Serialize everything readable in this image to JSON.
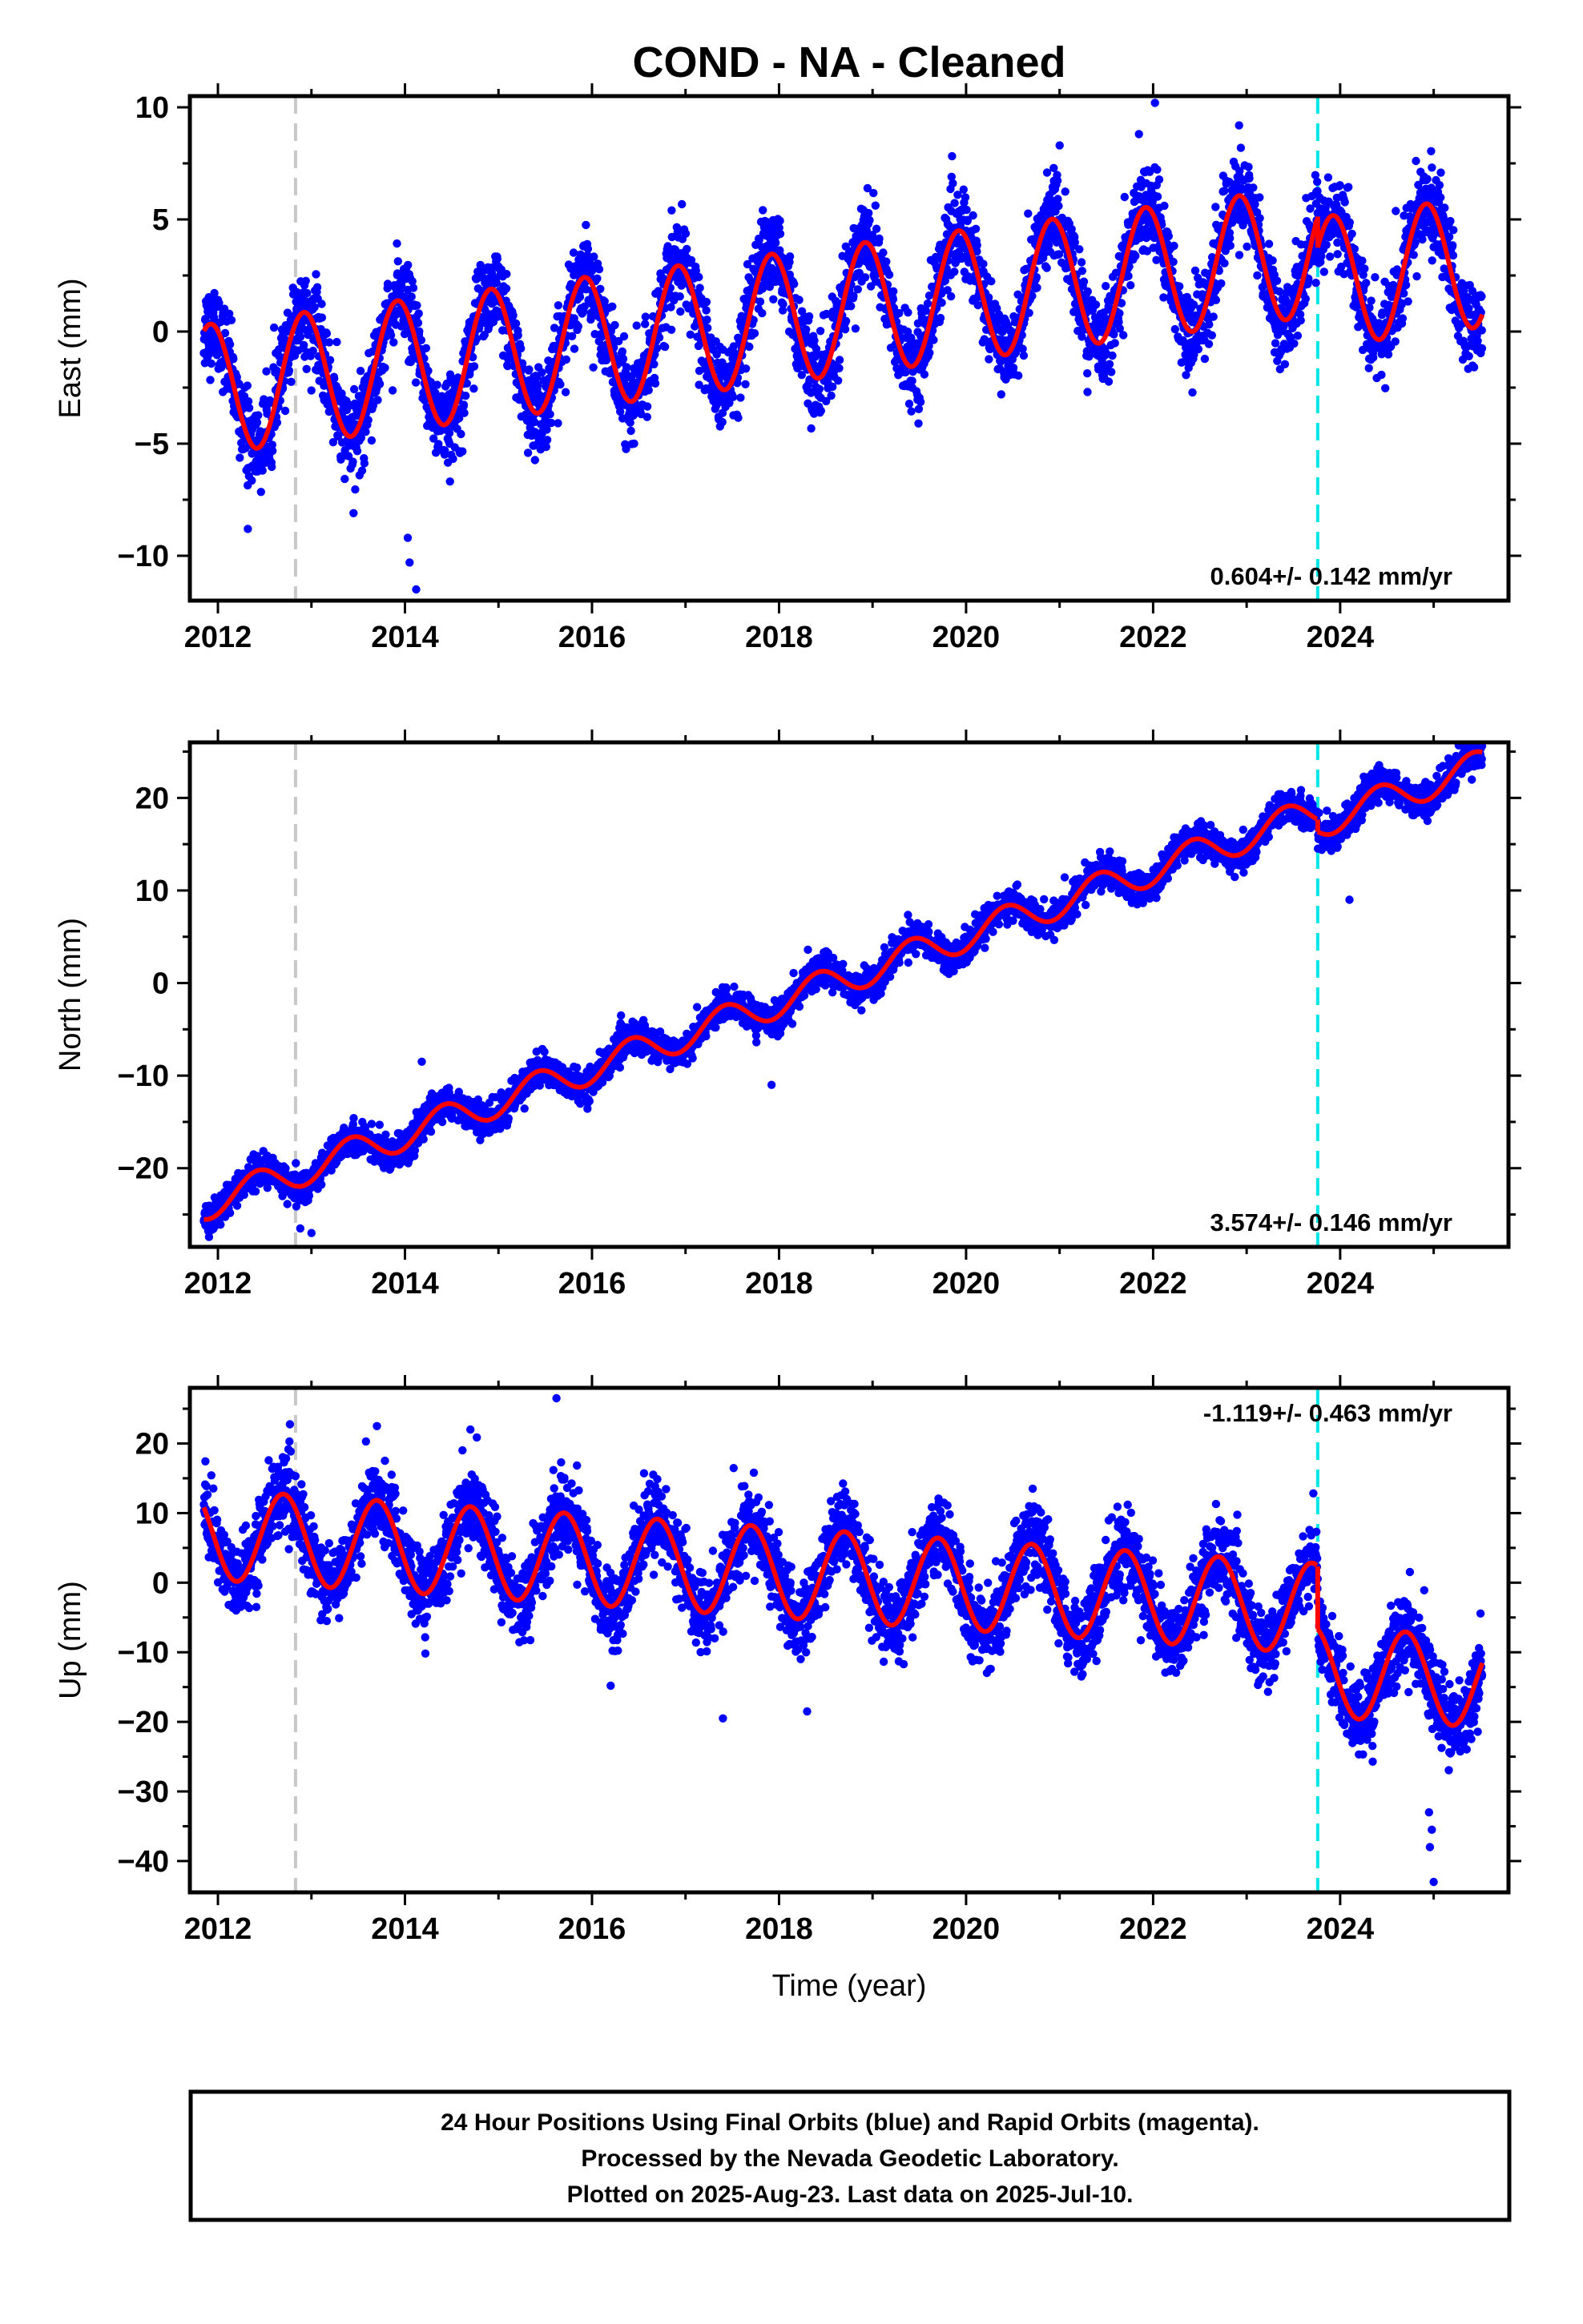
{
  "title": "COND  - NA - Cleaned",
  "xlabel": "Time (year)",
  "footer": {
    "lines": [
      "24 Hour Positions Using Final Orbits (blue) and Rapid Orbits (magenta).",
      "Processed by the Nevada Geodetic Laboratory.",
      "Plotted on 2025-Aug-23. Last data on 2025-Jul-10."
    ]
  },
  "colors": {
    "points": "#0000ff",
    "model": "#ff0000",
    "reference_line": "#c8c8c8",
    "event_line": "#00e5e5"
  },
  "chart_data": [
    {
      "type": "scatter",
      "name": "east",
      "ylabel": "East (mm)",
      "xlim": [
        2011.7,
        2025.8
      ],
      "ylim": [
        -12,
        10.5
      ],
      "xticks": [
        2012,
        2014,
        2016,
        2018,
        2020,
        2022,
        2024
      ],
      "yticks": [
        -10,
        -5,
        0,
        5,
        10
      ],
      "rate_label": "0.604+/- 0.142 mm/yr",
      "rate_position": "bottom-right",
      "vlines": [
        2012.83,
        2023.76
      ],
      "model": {
        "x0": 2011.85,
        "offset": -2.6,
        "slope": 0.52,
        "amplitude": 2.9,
        "peak_phase_year": 0.92,
        "step_at": 2023.76,
        "step_size": -1.4,
        "noise_sd": 0.95
      },
      "outliers": [
        [
          2014.05,
          -10.3
        ],
        [
          2014.12,
          -11.5
        ],
        [
          2014.03,
          -9.2
        ],
        [
          2012.32,
          -8.8
        ],
        [
          2013.45,
          -8.1
        ],
        [
          2022.02,
          10.2
        ],
        [
          2023.92,
          6.4
        ],
        [
          2021.0,
          8.3
        ]
      ]
    },
    {
      "type": "scatter",
      "name": "north",
      "ylabel": "North (mm)",
      "xlim": [
        2011.7,
        2025.8
      ],
      "ylim": [
        -28.5,
        26
      ],
      "xticks": [
        2012,
        2014,
        2016,
        2018,
        2020,
        2022,
        2024
      ],
      "yticks": [
        -20,
        -10,
        0,
        10,
        20
      ],
      "rate_label": "3.574+/- 0.146 mm/yr",
      "rate_position": "bottom-right",
      "vlines": [
        2012.83,
        2023.76
      ],
      "model": {
        "x0": 2011.85,
        "offset": -24.0,
        "slope": 3.574,
        "amplitude": 1.7,
        "peak_phase_year": 0.42,
        "step_at": 2023.76,
        "step_size": -1.3,
        "noise_sd": 0.85
      },
      "outliers": [
        [
          2012.88,
          -26.5
        ],
        [
          2013.0,
          -27.0
        ],
        [
          2014.18,
          -8.5
        ],
        [
          2016.55,
          -4.0
        ],
        [
          2017.92,
          -11.0
        ],
        [
          2024.1,
          9.0
        ],
        [
          2025.5,
          24.5
        ]
      ]
    },
    {
      "type": "scatter",
      "name": "up",
      "ylabel": "Up (mm)",
      "xlim": [
        2011.7,
        2025.8
      ],
      "ylim": [
        -44.5,
        28
      ],
      "xticks": [
        2012,
        2014,
        2016,
        2018,
        2020,
        2022,
        2024
      ],
      "yticks": [
        -40,
        -30,
        -20,
        -10,
        0,
        10,
        20
      ],
      "rate_label": "-1.119+/- 0.463 mm/yr",
      "rate_position": "top-right",
      "vlines": [
        2012.83,
        2023.76
      ],
      "model": {
        "x0": 2011.85,
        "offset": 7.0,
        "slope": -0.9,
        "amplitude": 6.5,
        "peak_phase_year": 0.7,
        "step_at": 2023.76,
        "step_size": -9.0,
        "noise_sd": 2.8
      },
      "outliers": [
        [
          2015.62,
          26.5
        ],
        [
          2016.2,
          -14.8
        ],
        [
          2017.4,
          -19.5
        ],
        [
          2018.3,
          -18.5
        ],
        [
          2024.95,
          -33.0
        ],
        [
          2024.98,
          -35.5
        ],
        [
          2024.96,
          -38.0
        ],
        [
          2025.0,
          -43.0
        ],
        [
          2013.7,
          22.5
        ],
        [
          2014.7,
          22.0
        ]
      ]
    }
  ]
}
